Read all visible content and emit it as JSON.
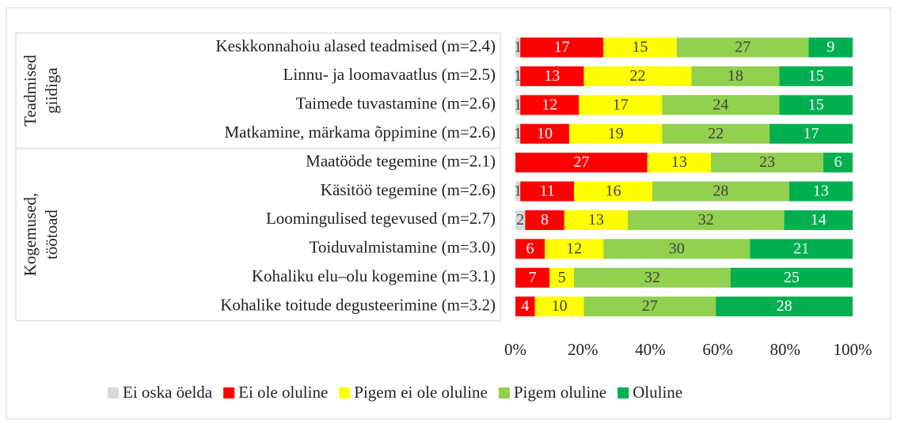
{
  "chart_data": {
    "type": "stacked_bar_100",
    "orientation": "horizontal",
    "categories": [
      "Keskkonnahoiu alased teadmised (m=2.4)",
      "Linnu- ja loomavaatlus (m=2.5)",
      "Taimede tuvastamine (m=2.6)",
      "Matkamine, märkama õppimine (m=2.6)",
      "Maatööde tegemine (m=2.1)",
      "Käsitöö tegemine (m=2.6)",
      "Loomingulised tegevused (m=2.7)",
      "Toiduvalmistamine (m=3.0)",
      "Kohaliku elu–olu kogemine (m=3.1)",
      "Kohalike toitude degusteerimine (m=3.2)"
    ],
    "groups": [
      {
        "lines": [
          "Teadmised",
          "giidiga"
        ],
        "start": 0,
        "end": 3
      },
      {
        "lines": [
          "Kogemused,",
          "töötoad"
        ],
        "start": 4,
        "end": 9
      }
    ],
    "series": [
      {
        "name": "Ei oska öelda",
        "color": "#d9d9d9",
        "label_color": "#404040",
        "values": [
          1,
          1,
          1,
          1,
          null,
          1,
          2,
          null,
          null,
          null
        ]
      },
      {
        "name": "Ei ole oluline",
        "color": "#ff0000",
        "label_color": "#ffffff",
        "values": [
          17,
          13,
          12,
          10,
          27,
          11,
          8,
          6,
          7,
          4
        ]
      },
      {
        "name": "Pigem ei ole oluline",
        "color": "#ffff00",
        "label_color": "#404040",
        "values": [
          15,
          22,
          17,
          19,
          13,
          16,
          13,
          12,
          5,
          10
        ]
      },
      {
        "name": "Pigem oluline",
        "color": "#92d050",
        "label_color": "#404040",
        "values": [
          27,
          18,
          24,
          22,
          23,
          28,
          32,
          30,
          32,
          27
        ]
      },
      {
        "name": "Oluline",
        "color": "#00b050",
        "label_color": "#ffffff",
        "values": [
          9,
          15,
          15,
          17,
          6,
          13,
          14,
          21,
          25,
          28
        ]
      }
    ],
    "xlim": [
      0,
      100
    ],
    "xticks": [
      {
        "value": 0,
        "label": "0%"
      },
      {
        "value": 20,
        "label": "20%"
      },
      {
        "value": 40,
        "label": "40%"
      },
      {
        "value": 60,
        "label": "60%"
      },
      {
        "value": 80,
        "label": "80%"
      },
      {
        "value": 100,
        "label": "100%"
      }
    ],
    "legend": "bottom"
  }
}
